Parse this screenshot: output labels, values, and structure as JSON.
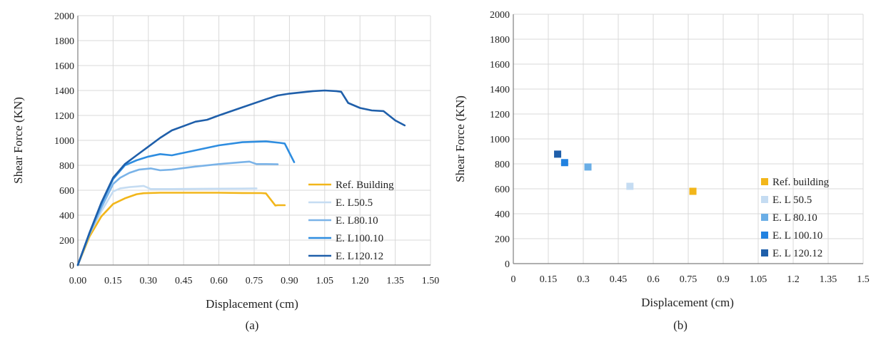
{
  "chart_data": [
    {
      "type": "line",
      "caption": "(a)",
      "xlabel": "Displacement (cm)",
      "ylabel": "Shear Force (KN)",
      "xlim": [
        0,
        1.5
      ],
      "ylim": [
        0,
        2000
      ],
      "xticks": [
        "0.00",
        "0.15",
        "0.30",
        "0.45",
        "0.60",
        "0.75",
        "0.90",
        "1.05",
        "1.20",
        "1.35",
        "1.50"
      ],
      "yticks": [
        "0",
        "200",
        "400",
        "600",
        "800",
        "1000",
        "1200",
        "1400",
        "1600",
        "1800",
        "2000"
      ],
      "grid": true,
      "legend_position": "lower-right",
      "series": [
        {
          "name": "Ref. Building",
          "color": "#f2b61a",
          "x": [
            0,
            0.05,
            0.1,
            0.15,
            0.2,
            0.25,
            0.28,
            0.35,
            0.5,
            0.6,
            0.7,
            0.78,
            0.8,
            0.84,
            0.85,
            0.88
          ],
          "y": [
            0,
            230,
            390,
            490,
            535,
            568,
            576,
            580,
            580,
            580,
            578,
            577,
            575,
            478,
            480,
            480
          ]
        },
        {
          "name": "E. L50.5",
          "color": "#c5dcf2",
          "x": [
            0,
            0.05,
            0.1,
            0.15,
            0.18,
            0.22,
            0.25,
            0.28,
            0.31,
            0.4,
            0.55,
            0.7,
            0.76
          ],
          "y": [
            0,
            250,
            430,
            590,
            615,
            625,
            630,
            635,
            610,
            610,
            612,
            613,
            615
          ]
        },
        {
          "name": "E. L80.10",
          "color": "#7ab3e8",
          "x": [
            0,
            0.05,
            0.1,
            0.15,
            0.18,
            0.22,
            0.26,
            0.31,
            0.35,
            0.4,
            0.5,
            0.6,
            0.7,
            0.73,
            0.76,
            0.8,
            0.85
          ],
          "y": [
            0,
            250,
            460,
            650,
            700,
            740,
            765,
            775,
            760,
            765,
            790,
            810,
            825,
            830,
            810,
            810,
            808
          ]
        },
        {
          "name": "E. L100.10",
          "color": "#2e8de0",
          "x": [
            0,
            0.05,
            0.1,
            0.15,
            0.2,
            0.25,
            0.3,
            0.35,
            0.4,
            0.5,
            0.6,
            0.7,
            0.8,
            0.86,
            0.88,
            0.9,
            0.92
          ],
          "y": [
            0,
            260,
            490,
            690,
            800,
            840,
            870,
            890,
            880,
            920,
            960,
            985,
            992,
            980,
            975,
            900,
            825
          ]
        },
        {
          "name": "E. L120.12",
          "color": "#1f5faa",
          "x": [
            0,
            0.05,
            0.1,
            0.15,
            0.2,
            0.25,
            0.3,
            0.35,
            0.4,
            0.5,
            0.55,
            0.6,
            0.7,
            0.8,
            0.85,
            0.9,
            1.0,
            1.05,
            1.1,
            1.12,
            1.15,
            1.2,
            1.25,
            1.3,
            1.35,
            1.39
          ],
          "y": [
            0,
            260,
            500,
            700,
            810,
            880,
            950,
            1020,
            1080,
            1150,
            1165,
            1200,
            1265,
            1330,
            1360,
            1375,
            1395,
            1400,
            1395,
            1390,
            1300,
            1260,
            1240,
            1235,
            1160,
            1120
          ]
        }
      ]
    },
    {
      "type": "scatter",
      "caption": "(b)",
      "xlabel": "Displacement (cm)",
      "ylabel": "Shear Force (KN)",
      "xlim": [
        0,
        1.5
      ],
      "ylim": [
        0,
        2000
      ],
      "xticks": [
        "0",
        "0.15",
        "0.3",
        "0.45",
        "0.6",
        "0.75",
        "0.9",
        "1.05",
        "1.2",
        "1.35",
        "1.5"
      ],
      "yticks": [
        "0",
        "200",
        "400",
        "600",
        "800",
        "1000",
        "1200",
        "1400",
        "1600",
        "1800",
        "2000"
      ],
      "grid": true,
      "legend_position": "lower-right",
      "series": [
        {
          "name": "Ref. building",
          "color": "#f2b61a",
          "x": [
            0.77
          ],
          "y": [
            580
          ]
        },
        {
          "name": "E. L 50.5",
          "color": "#c5dcf2",
          "x": [
            0.5
          ],
          "y": [
            620
          ]
        },
        {
          "name": "E.  L 80.10",
          "color": "#6aaee6",
          "x": [
            0.32
          ],
          "y": [
            775
          ]
        },
        {
          "name": "E. L 100.10",
          "color": "#2282e0",
          "x": [
            0.22
          ],
          "y": [
            810
          ]
        },
        {
          "name": "E. L 120.12",
          "color": "#1f5faa",
          "x": [
            0.19
          ],
          "y": [
            878
          ]
        }
      ]
    }
  ]
}
